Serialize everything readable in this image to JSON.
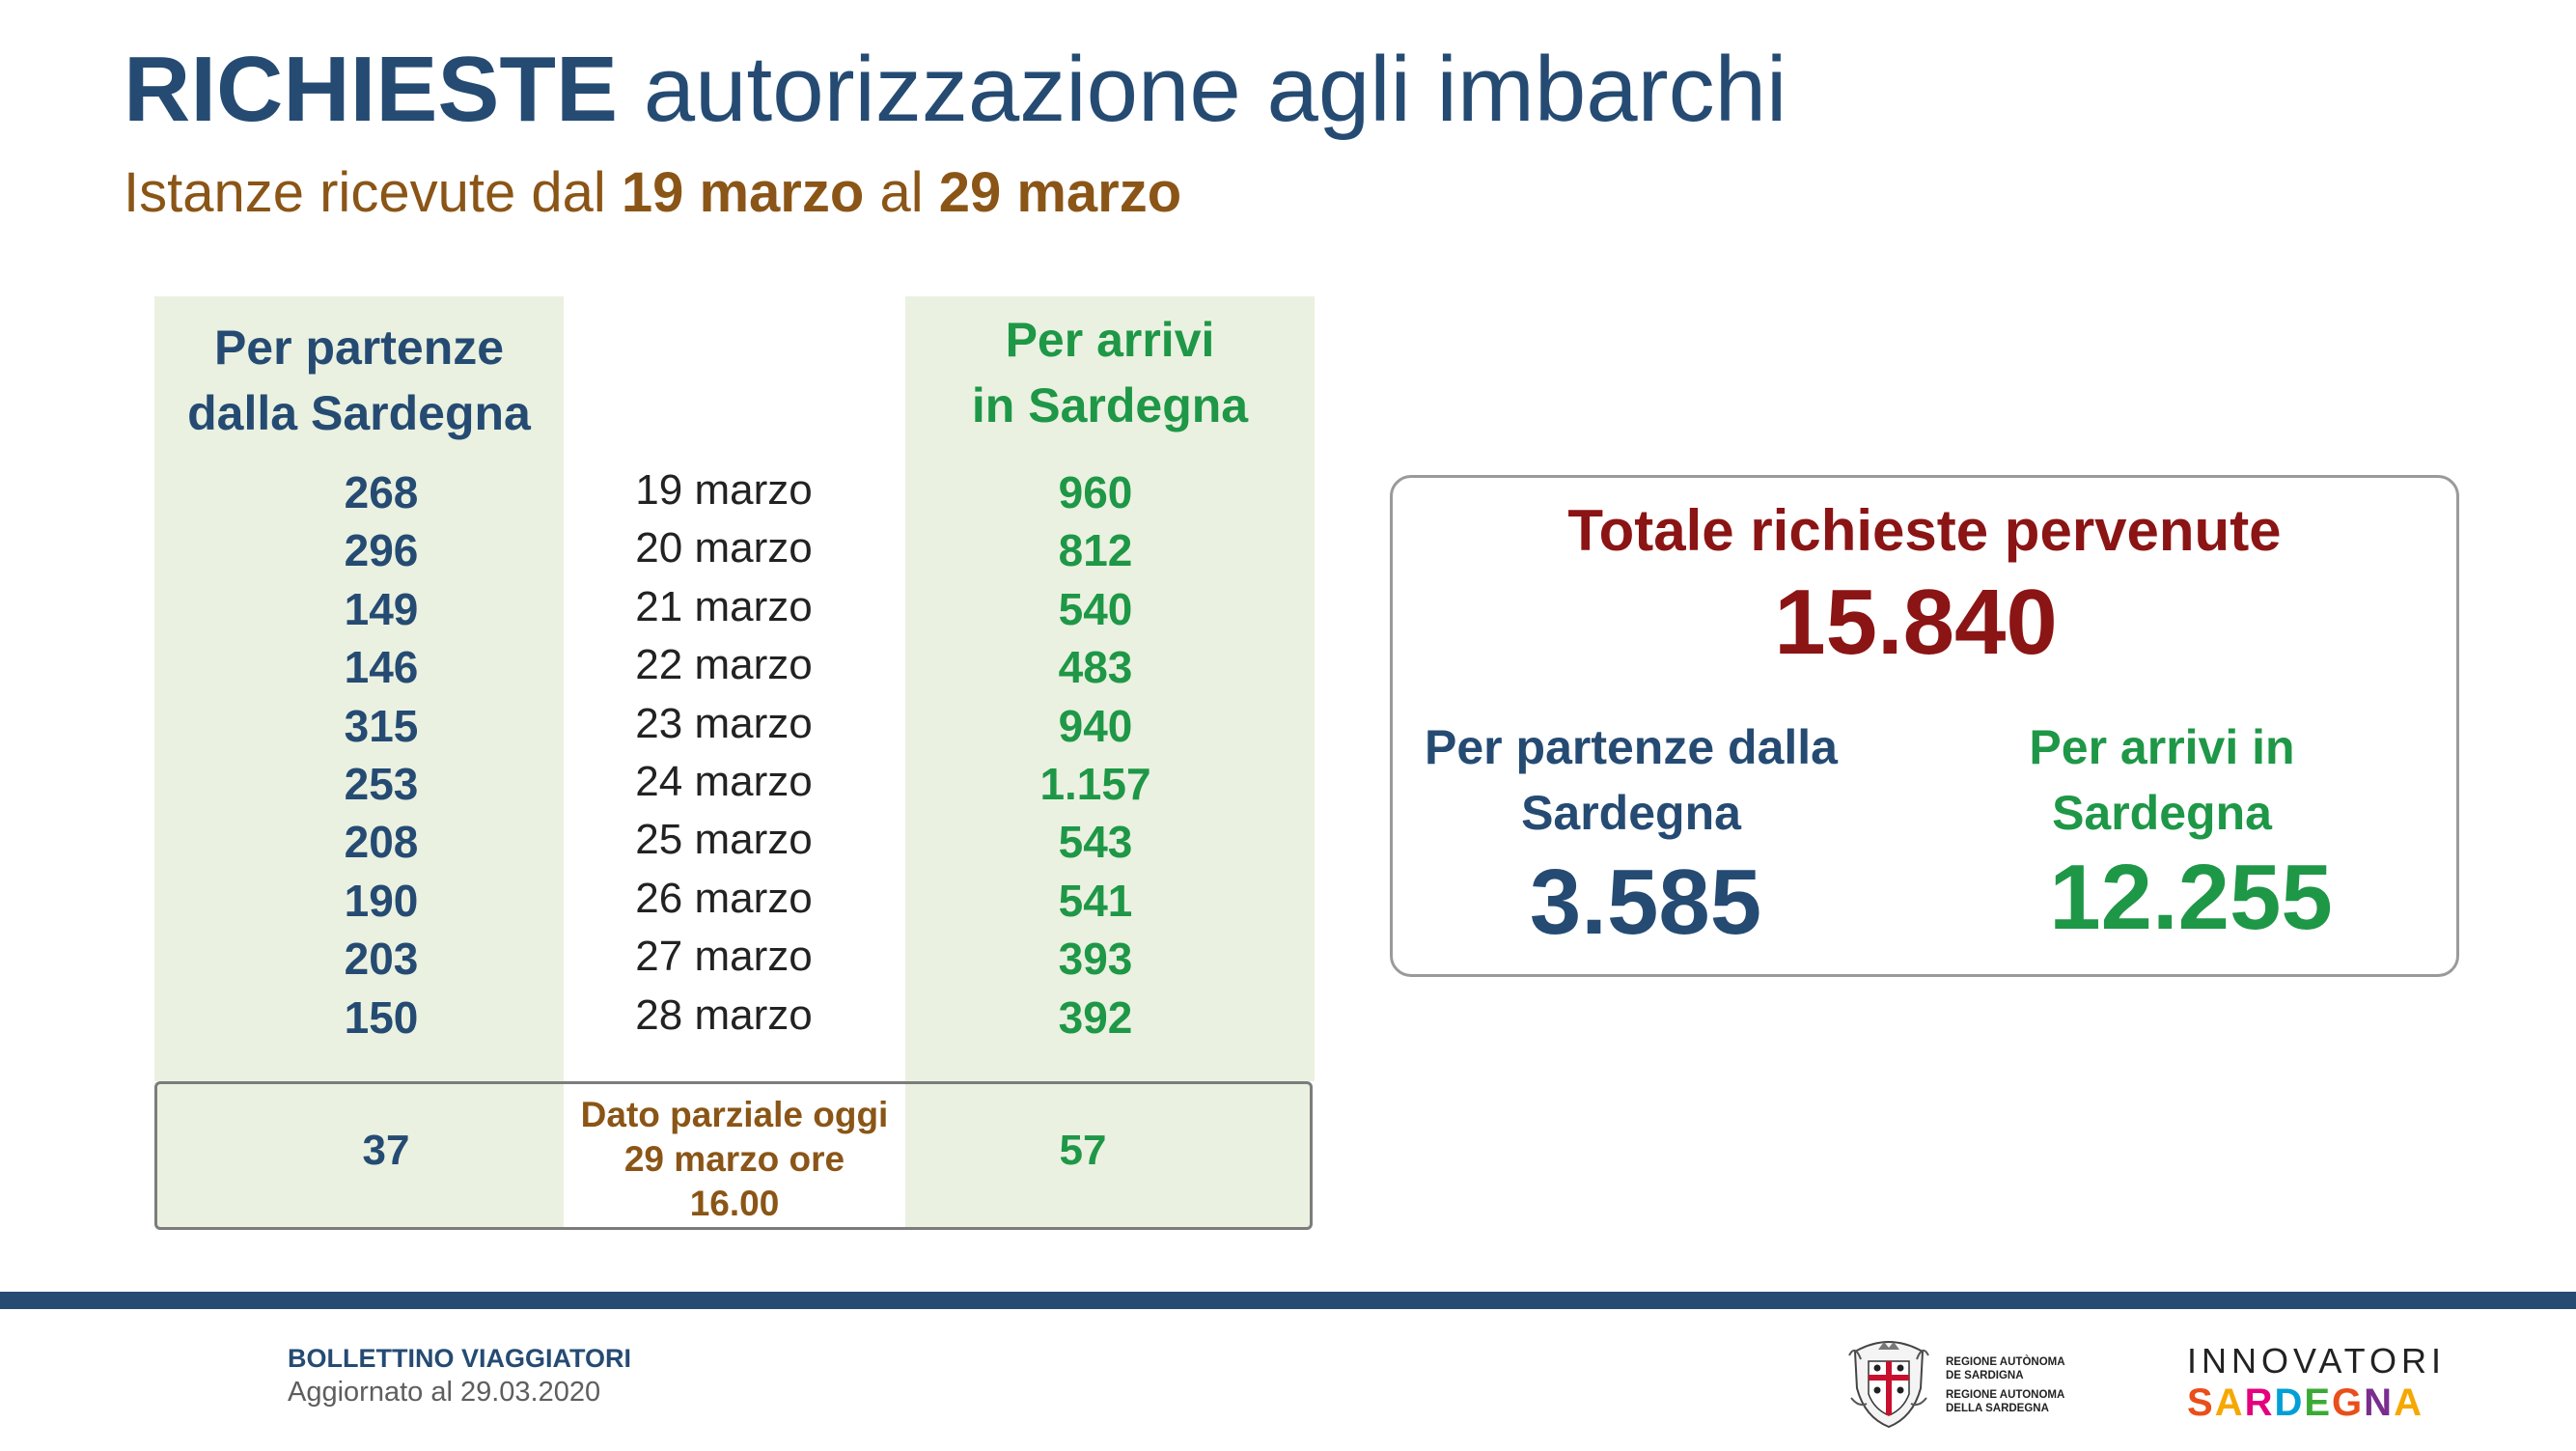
{
  "title": {
    "bold": "RICHIESTE",
    "rest": "autorizzazione agli imbarchi"
  },
  "subtitle": {
    "prefix": "Istanze ricevute dal",
    "from": "19 marzo",
    "middle": "al",
    "to": "29 marzo"
  },
  "table": {
    "left_header": [
      "Per partenze",
      "dalla Sardegna"
    ],
    "right_header": [
      "Per arrivi",
      "in Sardegna"
    ],
    "rows": [
      {
        "partenze": "268",
        "date": "19 marzo",
        "arrivi": "960"
      },
      {
        "partenze": "296",
        "date": "20 marzo",
        "arrivi": "812"
      },
      {
        "partenze": "149",
        "date": "21 marzo",
        "arrivi": "540"
      },
      {
        "partenze": "146",
        "date": "22 marzo",
        "arrivi": "483"
      },
      {
        "partenze": "315",
        "date": "23 marzo",
        "arrivi": "940"
      },
      {
        "partenze": "253",
        "date": "24 marzo",
        "arrivi": "1.157"
      },
      {
        "partenze": "208",
        "date": "25 marzo",
        "arrivi": "543"
      },
      {
        "partenze": "190",
        "date": "26 marzo",
        "arrivi": "541"
      },
      {
        "partenze": "203",
        "date": "27 marzo",
        "arrivi": "393"
      },
      {
        "partenze": "150",
        "date": "28 marzo",
        "arrivi": "392"
      }
    ],
    "partial": {
      "partenze": "37",
      "label": [
        "Dato parziale oggi",
        "29 marzo ore",
        "16.00"
      ],
      "arrivi": "57"
    }
  },
  "totals": {
    "title": "Totale richieste pervenute",
    "value": "15.840",
    "departures_label": [
      "Per partenze dalla",
      "Sardegna"
    ],
    "departures_value": "3.585",
    "arrivals_label": [
      "Per arrivi in",
      "Sardegna"
    ],
    "arrivals_value": "12.255"
  },
  "footer": {
    "title": "BOLLETTINO VIAGGIATORI",
    "updated": "Aggiornato al 29.03.2020",
    "region_lines": [
      "REGIONE AUTÒNOMA",
      "DE SARDIGNA",
      "REGIONE AUTONOMA",
      "DELLA SARDEGNA"
    ],
    "brand_top": "INNOVATORI",
    "brand_bottom": "SARDEGNA",
    "brand_colors": [
      "#e94e1b",
      "#f6a800",
      "#e5007d",
      "#00a0d6",
      "#3aaa35",
      "#e94e1b",
      "#7b2d8e",
      "#f6a800"
    ]
  },
  "colors": {
    "navy": "#254b73",
    "green": "#1e9747",
    "brown": "#8a5516",
    "dark_red": "#8b1414",
    "column_fill": "#eaf1e0"
  }
}
